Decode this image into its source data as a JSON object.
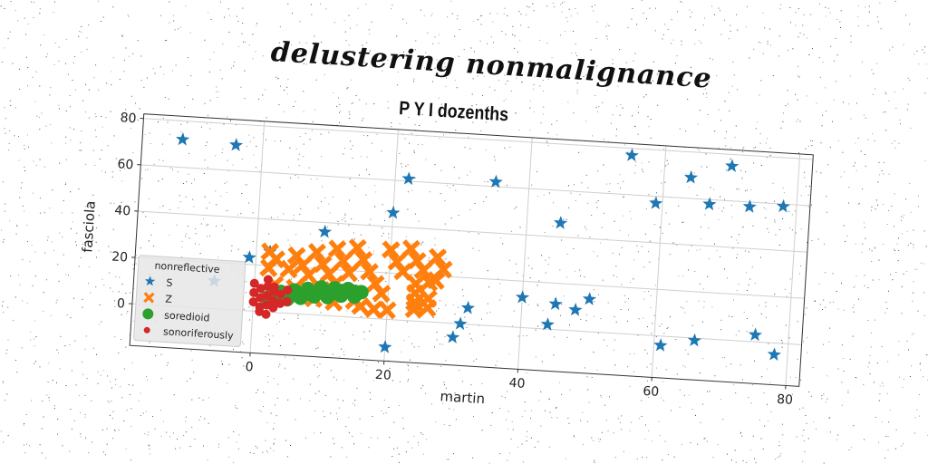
{
  "figure": {
    "suptitle": "delustering nonmalignance"
  },
  "chart_data": {
    "type": "scatter",
    "title": "P Y I dozenths",
    "xlabel": "martin",
    "ylabel": "fasciola",
    "xlim": [
      -18,
      82
    ],
    "ylim": [
      -18,
      82
    ],
    "xticks": [
      0,
      20,
      40,
      60,
      80
    ],
    "yticks": [
      0,
      20,
      40,
      60,
      80
    ],
    "grid": true,
    "legend": {
      "title": "nonreflective",
      "placement": "lower-left"
    },
    "series": [
      {
        "name": "S",
        "marker": "star",
        "color": "#1f77b4",
        "points": [
          [
            -12,
            72
          ],
          [
            -4,
            71
          ],
          [
            -1,
            23
          ],
          [
            2,
            26
          ],
          [
            10,
            36
          ],
          [
            20,
            46
          ],
          [
            22,
            61
          ],
          [
            35,
            62
          ],
          [
            45,
            46
          ],
          [
            55,
            77
          ],
          [
            59,
            57
          ],
          [
            64,
            69
          ],
          [
            67,
            58
          ],
          [
            70,
            75
          ],
          [
            73,
            58
          ],
          [
            78,
            59
          ],
          [
            -6,
            12
          ],
          [
            20,
            -12
          ],
          [
            30,
            -6
          ],
          [
            31,
            0
          ],
          [
            32,
            7
          ],
          [
            40,
            13
          ],
          [
            44,
            2
          ],
          [
            45,
            11
          ],
          [
            48,
            9
          ],
          [
            50,
            14
          ],
          [
            61,
            -4
          ],
          [
            66,
            -1
          ],
          [
            75,
            3
          ],
          [
            78,
            -5
          ]
        ]
      },
      {
        "name": "Z",
        "marker": "x",
        "color": "#ff7f0e",
        "points": [
          [
            2,
            26
          ],
          [
            3,
            23
          ],
          [
            2,
            19
          ],
          [
            5,
            19
          ],
          [
            6,
            25
          ],
          [
            7,
            21
          ],
          [
            8,
            17
          ],
          [
            9,
            27
          ],
          [
            10,
            22
          ],
          [
            11,
            18
          ],
          [
            12,
            29
          ],
          [
            13,
            24
          ],
          [
            14,
            19
          ],
          [
            15,
            30
          ],
          [
            16,
            25
          ],
          [
            17,
            20
          ],
          [
            18,
            15
          ],
          [
            19,
            11
          ],
          [
            20,
            30
          ],
          [
            21,
            25
          ],
          [
            22,
            21
          ],
          [
            23,
            31
          ],
          [
            24,
            26
          ],
          [
            25,
            22
          ],
          [
            26,
            17
          ],
          [
            27,
            28
          ],
          [
            28,
            23
          ],
          [
            24,
            12
          ],
          [
            24,
            8
          ],
          [
            24,
            5
          ],
          [
            9,
            7
          ],
          [
            12,
            6
          ],
          [
            15,
            7
          ],
          [
            16,
            5
          ],
          [
            18,
            4
          ],
          [
            20,
            4
          ],
          [
            6,
            11
          ],
          [
            3,
            12
          ],
          [
            12,
            14
          ],
          [
            10,
            11
          ],
          [
            26,
            10
          ],
          [
            26,
            6
          ],
          [
            27,
            18
          ],
          [
            24,
            16
          ]
        ]
      },
      {
        "name": "soredioid",
        "marker": "circle",
        "color": "#2ca02c",
        "points": [
          [
            2,
            6
          ],
          [
            3,
            7
          ],
          [
            4,
            7
          ],
          [
            5,
            8
          ],
          [
            6,
            8
          ],
          [
            7,
            9
          ],
          [
            8,
            9
          ],
          [
            9,
            9
          ],
          [
            10,
            10
          ],
          [
            11,
            10
          ],
          [
            12,
            10
          ],
          [
            13,
            11
          ],
          [
            14,
            11
          ],
          [
            15,
            11
          ],
          [
            16,
            11
          ],
          [
            4,
            9
          ],
          [
            6,
            10
          ],
          [
            8,
            11
          ],
          [
            10,
            12
          ],
          [
            12,
            12
          ],
          [
            14,
            12
          ],
          [
            5,
            6
          ],
          [
            7,
            7
          ],
          [
            9,
            8
          ],
          [
            11,
            8
          ],
          [
            13,
            9
          ],
          [
            15,
            9
          ],
          [
            3,
            5
          ]
        ]
      },
      {
        "name": "sonoriferously",
        "marker": "dot",
        "color": "#d62728",
        "points": [
          [
            0,
            12
          ],
          [
            1,
            10
          ],
          [
            2,
            14
          ],
          [
            3,
            9
          ],
          [
            1,
            6
          ],
          [
            2,
            7
          ],
          [
            3,
            5
          ],
          [
            0,
            4
          ],
          [
            4,
            8
          ],
          [
            5,
            10
          ],
          [
            2,
            3
          ],
          [
            3,
            2
          ],
          [
            1,
            2
          ],
          [
            4,
            4
          ],
          [
            2,
            -1
          ],
          [
            0,
            8
          ],
          [
            3,
            11
          ],
          [
            5,
            5
          ],
          [
            2,
            11
          ],
          [
            1,
            0
          ]
        ]
      }
    ]
  }
}
